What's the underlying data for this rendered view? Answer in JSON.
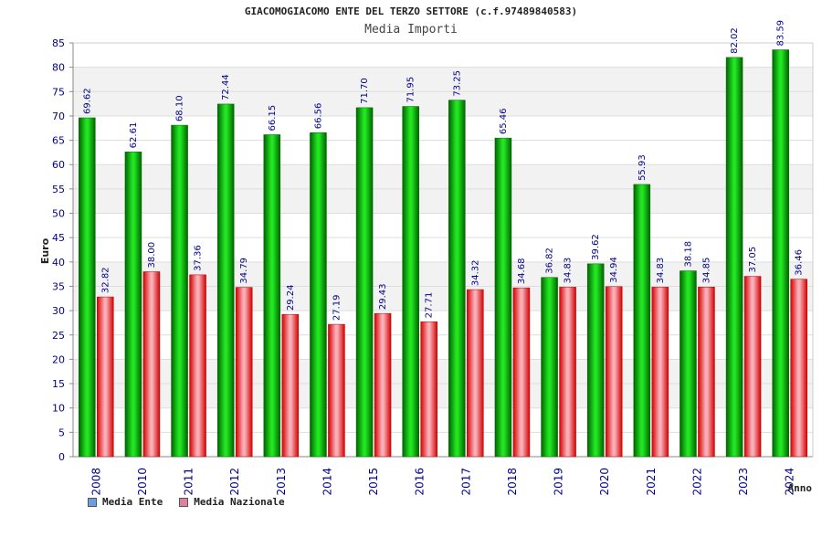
{
  "chart_data": {
    "type": "bar",
    "title": "GIACOMOGIACOMO ENTE DEL TERZO SETTORE (c.f.97489840583)",
    "subtitle": "Media Importi",
    "xlabel": "Anno",
    "ylabel": "Euro",
    "ylim": [
      0,
      85
    ],
    "ytick_step": 5,
    "grid": true,
    "legend_position": "bottom-left",
    "categories": [
      "2008",
      "2010",
      "2011",
      "2012",
      "2013",
      "2014",
      "2015",
      "2016",
      "2017",
      "2018",
      "2019",
      "2020",
      "2021",
      "2022",
      "2023",
      "2024"
    ],
    "series": [
      {
        "name": "Media Ente",
        "legend_color": "#6aa0e0",
        "bar_color": "#00b000",
        "values": [
          69.62,
          62.61,
          68.1,
          72.44,
          66.15,
          66.56,
          71.7,
          71.95,
          73.25,
          65.46,
          36.82,
          39.62,
          55.93,
          38.18,
          82.02,
          83.59
        ],
        "labels": [
          "69.62",
          "62.61",
          "68.10",
          "72.44",
          "66.15",
          "66.56",
          "71.70",
          "71.95",
          "73.25",
          "65.46",
          "36.82",
          "39.62",
          "55.93",
          "38.18",
          "82.02",
          "83.59"
        ]
      },
      {
        "name": "Media Nazionale",
        "legend_color": "#e080a0",
        "bar_color": "#e8202e",
        "values": [
          32.82,
          38.0,
          37.36,
          34.79,
          29.24,
          27.19,
          29.43,
          27.71,
          34.32,
          34.68,
          34.83,
          34.94,
          34.83,
          34.85,
          37.05,
          36.46
        ],
        "labels": [
          "32.82",
          "38.00",
          "37.36",
          "34.79",
          "29.24",
          "27.19",
          "29.43",
          "27.71",
          "34.32",
          "34.68",
          "34.83",
          "34.94",
          "34.83",
          "34.85",
          "37.05",
          "36.46"
        ]
      }
    ]
  }
}
